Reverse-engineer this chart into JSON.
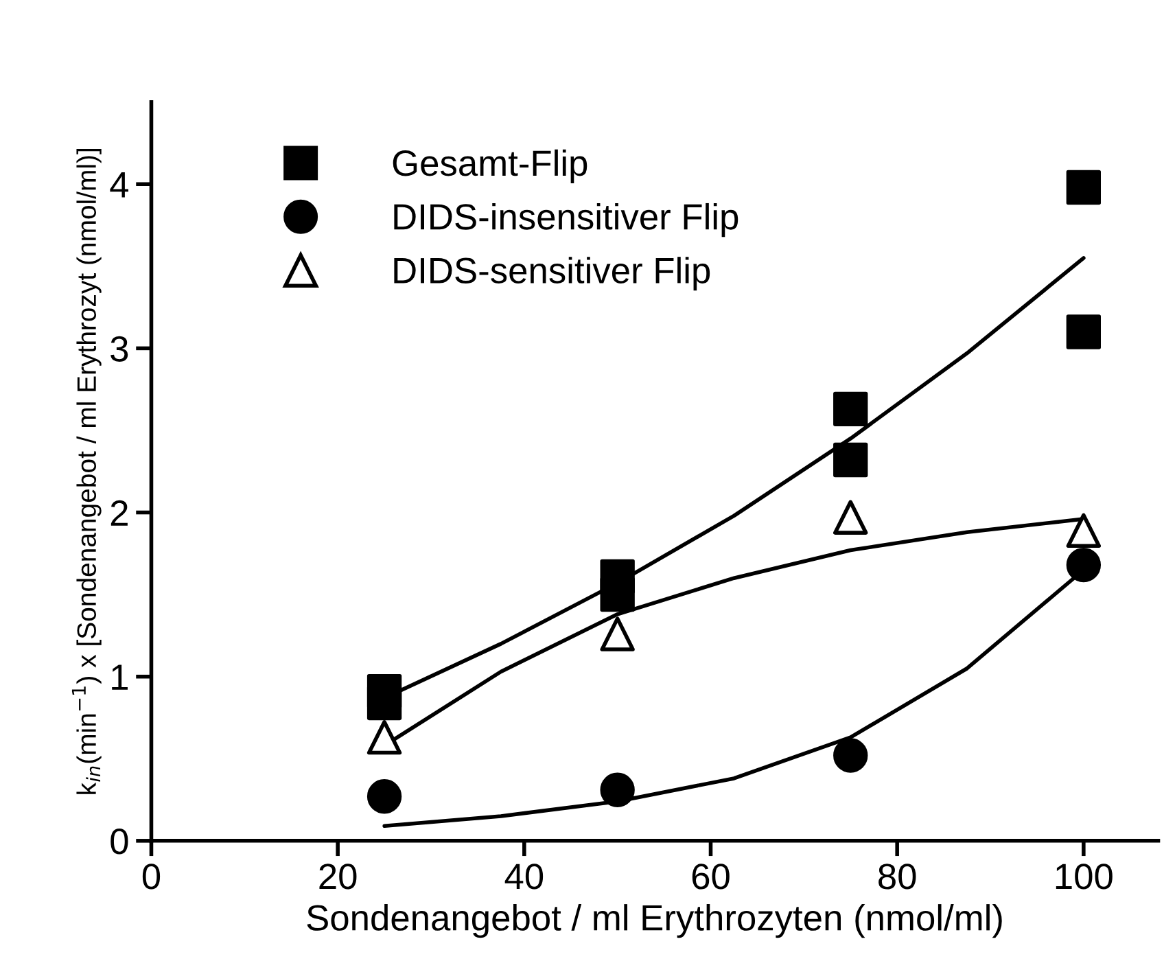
{
  "chart_data": {
    "type": "scatter",
    "xlabel": "Sondenangebot / ml Erythrozyten (nmol/ml)",
    "ylabel": "k$_{in}$(min$^{−1}$) x [Sondenangebot / ml Erythrozyt (nmol/ml)]",
    "xlim": [
      0,
      108
    ],
    "xticks": [
      0,
      20,
      40,
      60,
      80,
      100
    ],
    "ylim": [
      0,
      4.5
    ],
    "yticks": [
      0,
      1,
      2,
      3,
      4
    ],
    "grid": false,
    "legend": "top left",
    "series": [
      {
        "name": "Gesamt-Flip",
        "marker": "square",
        "color": "#000000",
        "x": [
          25,
          25,
          50,
          50,
          75,
          75,
          100,
          100
        ],
        "values": [
          0.91,
          0.84,
          1.61,
          1.5,
          2.63,
          2.32,
          3.98,
          3.1
        ]
      },
      {
        "name": "DIDS-insensitiver Flip",
        "marker": "circle",
        "color": "#000000",
        "x": [
          25,
          50,
          75,
          100
        ],
        "values": [
          0.27,
          0.31,
          0.52,
          1.68
        ]
      },
      {
        "name": "DIDS-sensitiver Flip",
        "marker": "triangle",
        "color": "#000000",
        "x": [
          25,
          50,
          75,
          100
        ],
        "values": [
          0.63,
          1.26,
          1.97,
          1.89
        ]
      },
      {
        "type": "line",
        "marker": "none",
        "line_style": "solid",
        "color": "#000000",
        "x": [
          25,
          37.5,
          50,
          62.5,
          75,
          87.5,
          100
        ],
        "values": [
          0.87,
          1.2,
          1.57,
          1.98,
          2.45,
          2.97,
          3.55
        ]
      },
      {
        "type": "line",
        "marker": "none",
        "line_style": "solid",
        "color": "#000000",
        "x": [
          25,
          37.5,
          50,
          62.5,
          75,
          87.5,
          100
        ],
        "values": [
          0.58,
          1.03,
          1.38,
          1.6,
          1.77,
          1.88,
          1.96
        ]
      },
      {
        "type": "line",
        "marker": "none",
        "line_style": "solid",
        "color": "#000000",
        "x": [
          25,
          37.5,
          50,
          62.5,
          75,
          87.5,
          100
        ],
        "values": [
          0.09,
          0.15,
          0.24,
          0.38,
          0.63,
          1.05,
          1.65
        ]
      }
    ]
  }
}
